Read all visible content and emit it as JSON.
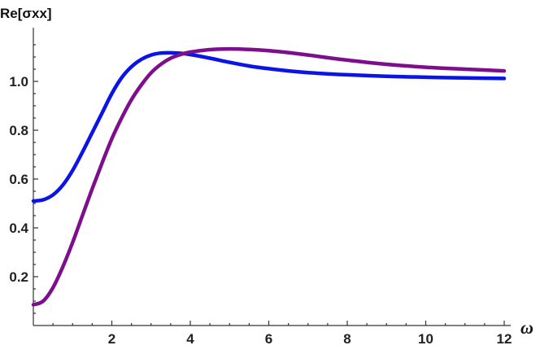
{
  "chart_data": {
    "type": "line",
    "title": "",
    "xlabel": "ω",
    "ylabel": "Re[σxx]",
    "xlim": [
      0,
      12
    ],
    "ylim": [
      0,
      1.2
    ],
    "x_ticks": [
      2,
      4,
      6,
      8,
      10,
      12
    ],
    "x_tick_labels": [
      "2",
      "4",
      "6",
      "8",
      "10",
      "12"
    ],
    "y_ticks": [
      0.2,
      0.4,
      0.6,
      0.8,
      1.0
    ],
    "y_tick_labels": [
      "0.2",
      "0.4",
      "0.6",
      "0.8",
      "1.0"
    ],
    "grid": false,
    "legend": "none",
    "series": [
      {
        "color": "#0a14e6",
        "x": [
          0,
          0.25,
          0.5,
          0.75,
          1,
          1.25,
          1.5,
          1.75,
          2,
          2.25,
          2.5,
          2.75,
          3,
          3.25,
          3.5,
          3.75,
          4,
          4.5,
          5,
          5.5,
          6,
          6.5,
          7,
          7.5,
          8,
          9,
          10,
          11,
          12
        ],
        "values": [
          0.51,
          0.515,
          0.535,
          0.575,
          0.635,
          0.71,
          0.79,
          0.87,
          0.95,
          1.015,
          1.06,
          1.09,
          1.108,
          1.116,
          1.117,
          1.115,
          1.11,
          1.095,
          1.078,
          1.063,
          1.052,
          1.043,
          1.036,
          1.031,
          1.027,
          1.021,
          1.017,
          1.014,
          1.012
        ]
      },
      {
        "color": "#7d0f8c",
        "x": [
          0,
          0.25,
          0.5,
          0.75,
          1,
          1.25,
          1.5,
          1.75,
          2,
          2.25,
          2.5,
          2.75,
          3,
          3.25,
          3.5,
          3.75,
          4,
          4.5,
          5,
          5.5,
          6,
          6.5,
          7,
          7.5,
          8,
          9,
          10,
          11,
          12
        ],
        "values": [
          0.085,
          0.1,
          0.155,
          0.24,
          0.34,
          0.45,
          0.56,
          0.665,
          0.765,
          0.85,
          0.925,
          0.985,
          1.035,
          1.07,
          1.095,
          1.11,
          1.12,
          1.13,
          1.133,
          1.131,
          1.126,
          1.118,
          1.108,
          1.097,
          1.087,
          1.07,
          1.058,
          1.05,
          1.043
        ]
      }
    ]
  }
}
